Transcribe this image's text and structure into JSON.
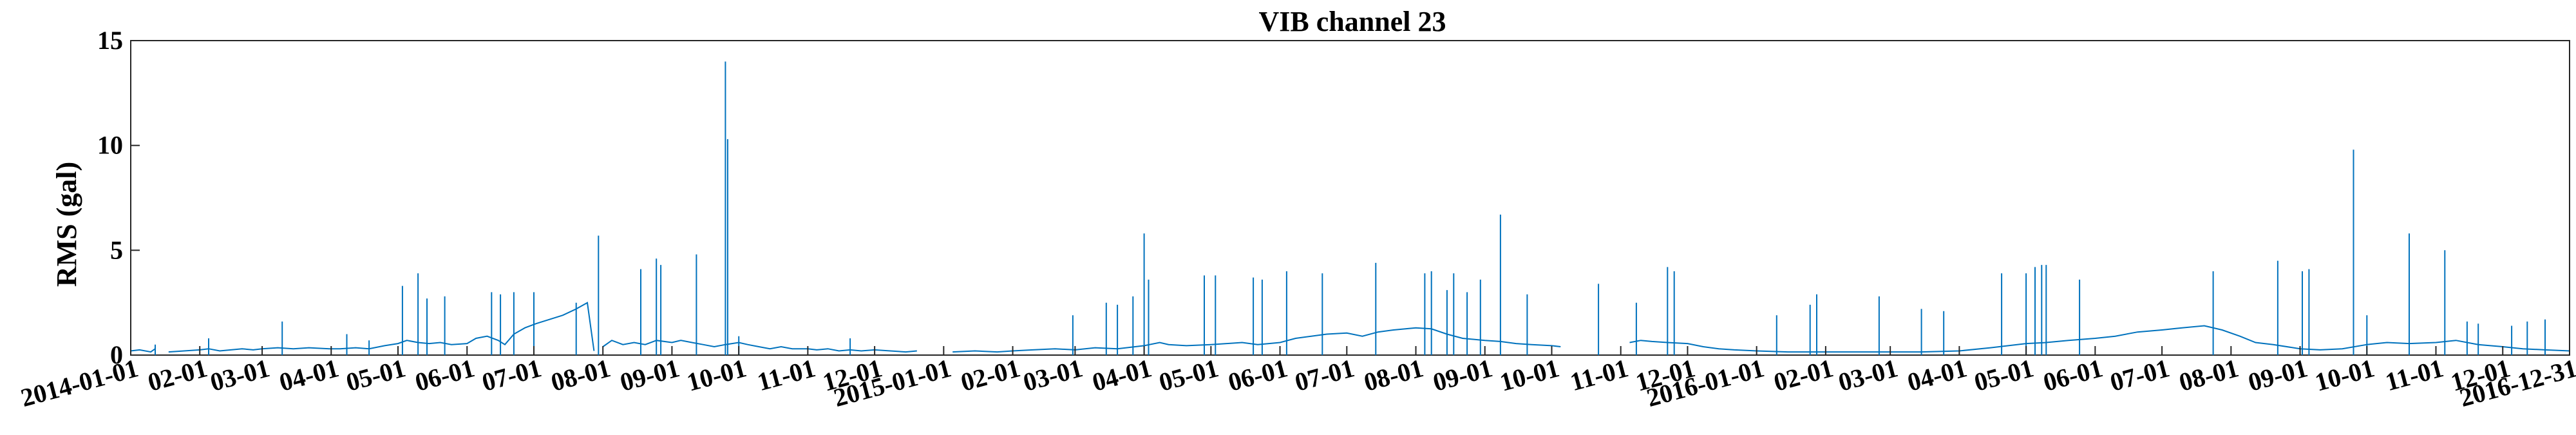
{
  "chart_data": {
    "type": "line",
    "title": "VIB channel 23",
    "xlabel": "",
    "ylabel": "RMS (gal)",
    "xlim": [
      "2014-01-01",
      "2016-12-31"
    ],
    "ylim": [
      0,
      15
    ],
    "yticks": [
      0,
      5,
      10,
      15
    ],
    "xticks": [
      {
        "date": "2014-01-01",
        "label": "2014-01-01"
      },
      {
        "date": "2014-02-01",
        "label": "02-01"
      },
      {
        "date": "2014-03-01",
        "label": "03-01"
      },
      {
        "date": "2014-04-01",
        "label": "04-01"
      },
      {
        "date": "2014-05-01",
        "label": "05-01"
      },
      {
        "date": "2014-06-01",
        "label": "06-01"
      },
      {
        "date": "2014-07-01",
        "label": "07-01"
      },
      {
        "date": "2014-08-01",
        "label": "08-01"
      },
      {
        "date": "2014-09-01",
        "label": "09-01"
      },
      {
        "date": "2014-10-01",
        "label": "10-01"
      },
      {
        "date": "2014-11-01",
        "label": "11-01"
      },
      {
        "date": "2014-12-01",
        "label": "12-01"
      },
      {
        "date": "2015-01-01",
        "label": "2015-01-01"
      },
      {
        "date": "2015-02-01",
        "label": "02-01"
      },
      {
        "date": "2015-03-01",
        "label": "03-01"
      },
      {
        "date": "2015-04-01",
        "label": "04-01"
      },
      {
        "date": "2015-05-01",
        "label": "05-01"
      },
      {
        "date": "2015-06-01",
        "label": "06-01"
      },
      {
        "date": "2015-07-01",
        "label": "07-01"
      },
      {
        "date": "2015-08-01",
        "label": "08-01"
      },
      {
        "date": "2015-09-01",
        "label": "09-01"
      },
      {
        "date": "2015-10-01",
        "label": "10-01"
      },
      {
        "date": "2015-11-01",
        "label": "11-01"
      },
      {
        "date": "2015-12-01",
        "label": "12-01"
      },
      {
        "date": "2016-01-01",
        "label": "2016-01-01"
      },
      {
        "date": "2016-02-01",
        "label": "02-01"
      },
      {
        "date": "2016-03-01",
        "label": "03-01"
      },
      {
        "date": "2016-04-01",
        "label": "04-01"
      },
      {
        "date": "2016-05-01",
        "label": "05-01"
      },
      {
        "date": "2016-06-01",
        "label": "06-01"
      },
      {
        "date": "2016-07-01",
        "label": "07-01"
      },
      {
        "date": "2016-08-01",
        "label": "08-01"
      },
      {
        "date": "2016-09-01",
        "label": "09-01"
      },
      {
        "date": "2016-10-01",
        "label": "10-01"
      },
      {
        "date": "2016-11-01",
        "label": "11-01"
      },
      {
        "date": "2016-12-01",
        "label": "12-01"
      },
      {
        "date": "2016-12-31",
        "label": "2016-12-31"
      }
    ],
    "grid": false,
    "line_color": "#0072BD",
    "series": [
      {
        "segments": [
          [
            [
              "2014-01-01",
              0.2
            ],
            [
              "2014-01-05",
              0.25
            ],
            [
              "2014-01-10",
              0.15
            ],
            [
              "2014-01-12",
              0.3
            ]
          ],
          [
            [
              "2014-01-18",
              0.15
            ],
            [
              "2014-01-25",
              0.2
            ],
            [
              "2014-02-01",
              0.25
            ],
            [
              "2014-02-05",
              0.3
            ],
            [
              "2014-02-10",
              0.2
            ],
            [
              "2014-02-15",
              0.25
            ],
            [
              "2014-02-20",
              0.3
            ],
            [
              "2014-02-25",
              0.25
            ],
            [
              "2014-03-01",
              0.3
            ],
            [
              "2014-03-08",
              0.35
            ],
            [
              "2014-03-15",
              0.3
            ],
            [
              "2014-03-22",
              0.35
            ],
            [
              "2014-03-31",
              0.3
            ],
            [
              "2014-04-05",
              0.3
            ],
            [
              "2014-04-12",
              0.35
            ],
            [
              "2014-04-18",
              0.3
            ],
            [
              "2014-04-25",
              0.45
            ],
            [
              "2014-05-01",
              0.55
            ],
            [
              "2014-05-05",
              0.7
            ],
            [
              "2014-05-10",
              0.6
            ],
            [
              "2014-05-15",
              0.55
            ],
            [
              "2014-05-20",
              0.6
            ],
            [
              "2014-05-25",
              0.5
            ],
            [
              "2014-06-01",
              0.55
            ],
            [
              "2014-06-05",
              0.8
            ],
            [
              "2014-06-10",
              0.9
            ],
            [
              "2014-06-15",
              0.7
            ],
            [
              "2014-06-18",
              0.5
            ],
            [
              "2014-06-22",
              1.0
            ],
            [
              "2014-06-27",
              1.3
            ],
            [
              "2014-07-02",
              1.5
            ],
            [
              "2014-07-08",
              1.7
            ],
            [
              "2014-07-14",
              1.9
            ],
            [
              "2014-07-20",
              2.2
            ],
            [
              "2014-07-25",
              2.5
            ],
            [
              "2014-07-28",
              0.2
            ]
          ],
          [
            [
              "2014-08-01",
              0.4
            ],
            [
              "2014-08-05",
              0.7
            ],
            [
              "2014-08-10",
              0.5
            ],
            [
              "2014-08-15",
              0.6
            ],
            [
              "2014-08-20",
              0.5
            ],
            [
              "2014-08-25",
              0.7
            ],
            [
              "2014-09-01",
              0.6
            ],
            [
              "2014-09-05",
              0.7
            ],
            [
              "2014-09-10",
              0.6
            ],
            [
              "2014-09-15",
              0.5
            ],
            [
              "2014-09-20",
              0.4
            ],
            [
              "2014-09-25",
              0.5
            ],
            [
              "2014-10-01",
              0.6
            ],
            [
              "2014-10-05",
              0.5
            ],
            [
              "2014-10-10",
              0.4
            ],
            [
              "2014-10-15",
              0.3
            ],
            [
              "2014-10-20",
              0.4
            ],
            [
              "2014-10-25",
              0.3
            ],
            [
              "2014-11-01",
              0.3
            ],
            [
              "2014-11-05",
              0.25
            ],
            [
              "2014-11-10",
              0.3
            ],
            [
              "2014-11-15",
              0.2
            ],
            [
              "2014-11-20",
              0.25
            ],
            [
              "2014-11-25",
              0.2
            ],
            [
              "2014-12-01",
              0.25
            ],
            [
              "2014-12-08",
              0.2
            ],
            [
              "2014-12-15",
              0.15
            ],
            [
              "2014-12-20",
              0.2
            ]
          ],
          [
            [
              "2015-01-05",
              0.15
            ],
            [
              "2015-01-15",
              0.2
            ],
            [
              "2015-01-25",
              0.15
            ],
            [
              "2015-02-01",
              0.2
            ],
            [
              "2015-02-10",
              0.25
            ],
            [
              "2015-02-20",
              0.3
            ],
            [
              "2015-03-01",
              0.25
            ],
            [
              "2015-03-10",
              0.35
            ],
            [
              "2015-03-20",
              0.3
            ],
            [
              "2015-04-01",
              0.45
            ],
            [
              "2015-04-08",
              0.6
            ],
            [
              "2015-04-12",
              0.5
            ],
            [
              "2015-04-20",
              0.45
            ],
            [
              "2015-05-01",
              0.5
            ],
            [
              "2015-05-08",
              0.55
            ],
            [
              "2015-05-15",
              0.6
            ],
            [
              "2015-05-22",
              0.5
            ],
            [
              "2015-06-01",
              0.6
            ],
            [
              "2015-06-08",
              0.8
            ],
            [
              "2015-06-15",
              0.9
            ],
            [
              "2015-06-22",
              1.0
            ],
            [
              "2015-07-01",
              1.05
            ],
            [
              "2015-07-08",
              0.9
            ],
            [
              "2015-07-15",
              1.1
            ],
            [
              "2015-07-22",
              1.2
            ],
            [
              "2015-08-01",
              1.3
            ],
            [
              "2015-08-08",
              1.25
            ],
            [
              "2015-08-15",
              1.0
            ],
            [
              "2015-08-22",
              0.8
            ],
            [
              "2015-09-01",
              0.7
            ],
            [
              "2015-09-08",
              0.65
            ],
            [
              "2015-09-15",
              0.55
            ],
            [
              "2015-09-22",
              0.5
            ],
            [
              "2015-10-01",
              0.45
            ],
            [
              "2015-10-05",
              0.4
            ]
          ],
          [
            [
              "2015-11-05",
              0.6
            ],
            [
              "2015-11-10",
              0.7
            ],
            [
              "2015-11-15",
              0.65
            ],
            [
              "2015-11-22",
              0.6
            ],
            [
              "2015-12-01",
              0.55
            ],
            [
              "2015-12-08",
              0.4
            ],
            [
              "2015-12-15",
              0.3
            ],
            [
              "2015-12-22",
              0.25
            ],
            [
              "2016-01-01",
              0.2
            ],
            [
              "2016-01-15",
              0.15
            ],
            [
              "2016-02-01",
              0.15
            ],
            [
              "2016-02-15",
              0.15
            ],
            [
              "2016-03-01",
              0.15
            ],
            [
              "2016-03-15",
              0.15
            ],
            [
              "2016-04-01",
              0.2
            ],
            [
              "2016-04-15",
              0.35
            ],
            [
              "2016-05-01",
              0.55
            ],
            [
              "2016-05-10",
              0.6
            ],
            [
              "2016-05-20",
              0.7
            ],
            [
              "2016-06-01",
              0.8
            ],
            [
              "2016-06-10",
              0.9
            ],
            [
              "2016-06-20",
              1.1
            ],
            [
              "2016-07-01",
              1.2
            ],
            [
              "2016-07-10",
              1.3
            ],
            [
              "2016-07-20",
              1.4
            ],
            [
              "2016-07-28",
              1.2
            ],
            [
              "2016-08-05",
              0.9
            ],
            [
              "2016-08-12",
              0.6
            ],
            [
              "2016-08-20",
              0.5
            ],
            [
              "2016-09-01",
              0.3
            ],
            [
              "2016-09-10",
              0.25
            ],
            [
              "2016-09-20",
              0.3
            ],
            [
              "2016-10-01",
              0.5
            ],
            [
              "2016-10-10",
              0.6
            ],
            [
              "2016-10-20",
              0.55
            ],
            [
              "2016-11-01",
              0.6
            ],
            [
              "2016-11-10",
              0.7
            ],
            [
              "2016-11-20",
              0.5
            ],
            [
              "2016-12-01",
              0.4
            ],
            [
              "2016-12-10",
              0.3
            ],
            [
              "2016-12-20",
              0.25
            ],
            [
              "2016-12-31",
              0.2
            ]
          ]
        ],
        "spikes": [
          [
            "2014-01-12",
            0.5
          ],
          [
            "2014-02-05",
            0.8
          ],
          [
            "2014-03-10",
            1.6
          ],
          [
            "2014-04-08",
            1.0
          ],
          [
            "2014-04-18",
            0.7
          ],
          [
            "2014-05-03",
            3.3
          ],
          [
            "2014-05-10",
            3.9
          ],
          [
            "2014-05-14",
            2.7
          ],
          [
            "2014-05-22",
            2.8
          ],
          [
            "2014-06-12",
            3.0
          ],
          [
            "2014-06-16",
            2.9
          ],
          [
            "2014-06-22",
            3.0
          ],
          [
            "2014-07-01",
            3.0
          ],
          [
            "2014-07-20",
            2.5
          ],
          [
            "2014-07-30",
            5.7
          ],
          [
            "2014-08-18",
            4.1
          ],
          [
            "2014-08-25",
            4.6
          ],
          [
            "2014-08-27",
            4.3
          ],
          [
            "2014-09-12",
            4.8
          ],
          [
            "2014-09-25",
            14.0
          ],
          [
            "2014-09-26",
            10.3
          ],
          [
            "2014-10-01",
            0.9
          ],
          [
            "2014-11-20",
            0.8
          ],
          [
            "2015-02-28",
            1.9
          ],
          [
            "2015-03-15",
            2.5
          ],
          [
            "2015-03-20",
            2.4
          ],
          [
            "2015-03-27",
            2.8
          ],
          [
            "2015-04-01",
            5.8
          ],
          [
            "2015-04-03",
            3.6
          ],
          [
            "2015-04-28",
            3.8
          ],
          [
            "2015-05-03",
            3.8
          ],
          [
            "2015-05-20",
            3.7
          ],
          [
            "2015-05-24",
            3.6
          ],
          [
            "2015-06-04",
            4.0
          ],
          [
            "2015-06-20",
            3.9
          ],
          [
            "2015-07-14",
            4.4
          ],
          [
            "2015-08-05",
            3.9
          ],
          [
            "2015-08-08",
            4.0
          ],
          [
            "2015-08-15",
            3.1
          ],
          [
            "2015-08-18",
            3.9
          ],
          [
            "2015-08-24",
            3.0
          ],
          [
            "2015-08-30",
            3.6
          ],
          [
            "2015-09-08",
            6.7
          ],
          [
            "2015-09-20",
            2.9
          ],
          [
            "2015-10-22",
            3.4
          ],
          [
            "2015-11-08",
            2.5
          ],
          [
            "2015-11-22",
            4.2
          ],
          [
            "2015-11-25",
            4.0
          ],
          [
            "2016-01-10",
            1.9
          ],
          [
            "2016-01-25",
            2.4
          ],
          [
            "2016-01-28",
            2.9
          ],
          [
            "2016-02-25",
            2.8
          ],
          [
            "2016-03-15",
            2.2
          ],
          [
            "2016-03-25",
            2.1
          ],
          [
            "2016-04-20",
            3.9
          ],
          [
            "2016-05-01",
            3.9
          ],
          [
            "2016-05-05",
            4.2
          ],
          [
            "2016-05-08",
            4.3
          ],
          [
            "2016-05-10",
            4.3
          ],
          [
            "2016-05-25",
            3.6
          ],
          [
            "2016-07-24",
            4.0
          ],
          [
            "2016-08-22",
            4.5
          ],
          [
            "2016-09-02",
            4.0
          ],
          [
            "2016-09-05",
            4.1
          ],
          [
            "2016-09-25",
            9.8
          ],
          [
            "2016-10-01",
            1.9
          ],
          [
            "2016-10-20",
            5.8
          ],
          [
            "2016-11-05",
            5.0
          ],
          [
            "2016-11-15",
            1.6
          ],
          [
            "2016-11-20",
            1.5
          ],
          [
            "2016-12-05",
            1.4
          ],
          [
            "2016-12-12",
            1.6
          ],
          [
            "2016-12-20",
            1.7
          ]
        ]
      }
    ]
  }
}
